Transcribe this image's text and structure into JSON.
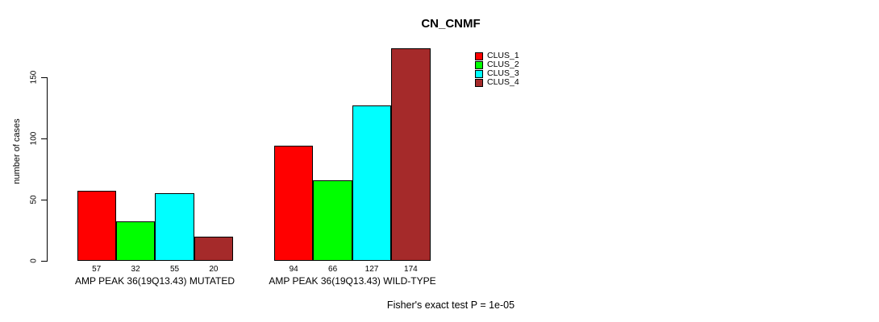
{
  "title": "CN_CNMF",
  "footer": "Fisher's exact test P = 1e-05",
  "chart_data": {
    "type": "bar",
    "title": "CN_CNMF",
    "xlabel": "",
    "ylabel": "number of cases",
    "ylim": [
      0,
      174
    ],
    "yticks": [
      0,
      50,
      100,
      150
    ],
    "grid": false,
    "legend_position": "top-right-inside",
    "bar_value_labels": true,
    "series": [
      {
        "name": "CLUS_1",
        "color": "#FF0000"
      },
      {
        "name": "CLUS_2",
        "color": "#00FF00"
      },
      {
        "name": "CLUS_3",
        "color": "#00FFFF"
      },
      {
        "name": "CLUS_4",
        "color": "#A52A2A"
      }
    ],
    "groups": [
      {
        "label": "AMP PEAK 36(19Q13.43) MUTATED",
        "values": [
          57,
          32,
          55,
          20
        ]
      },
      {
        "label": "AMP PEAK 36(19Q13.43) WILD-TYPE",
        "values": [
          94,
          66,
          127,
          174
        ]
      }
    ],
    "annotation": "Fisher's exact test P = 1e-05"
  }
}
